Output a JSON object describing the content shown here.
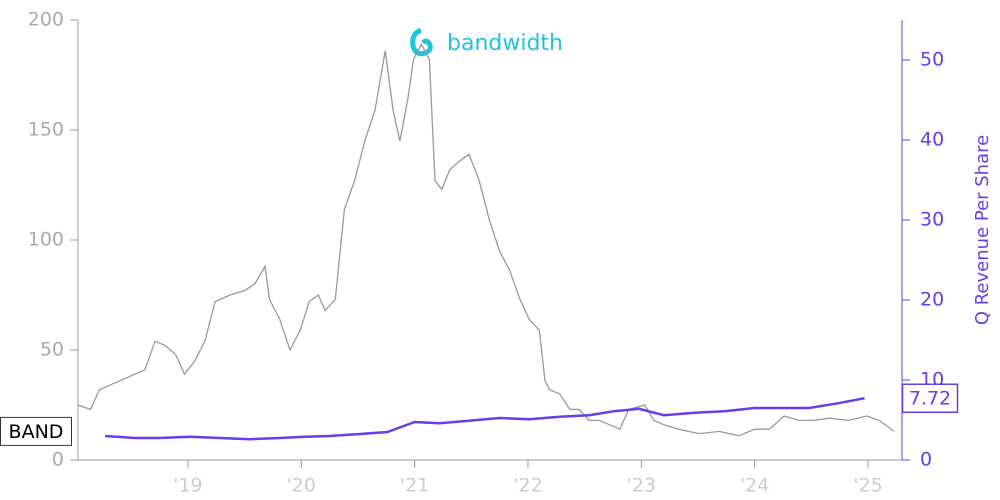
{
  "chart_data": {
    "type": "line",
    "logo_text": "bandwidth",
    "xlim": [
      2018.03,
      2025.3
    ],
    "xticks": [
      {
        "value": 2019,
        "label": "'19"
      },
      {
        "value": 2020,
        "label": "'20"
      },
      {
        "value": 2021,
        "label": "'21"
      },
      {
        "value": 2022,
        "label": "'22"
      },
      {
        "value": 2023,
        "label": "'23"
      },
      {
        "value": 2024,
        "label": "'24"
      },
      {
        "value": 2025,
        "label": "'25"
      }
    ],
    "ylim": [
      0,
      200
    ],
    "yticks": [
      0,
      50,
      100,
      150,
      200
    ],
    "y2lim": [
      0,
      55
    ],
    "y2ticks": [
      0,
      10,
      20,
      30,
      40,
      50
    ],
    "series": [
      {
        "name": "BAND",
        "color": "#999999",
        "axis": "y",
        "x": [
          2018.03,
          2018.14,
          2018.22,
          2018.4,
          2018.53,
          2018.62,
          2018.71,
          2018.8,
          2018.89,
          2018.97,
          2019.06,
          2019.15,
          2019.24,
          2019.37,
          2019.5,
          2019.59,
          2019.68,
          2019.72,
          2019.81,
          2019.9,
          2019.99,
          2020.07,
          2020.15,
          2020.21,
          2020.3,
          2020.38,
          2020.47,
          2020.56,
          2020.65,
          2020.74,
          2020.81,
          2020.87,
          2020.94,
          2020.99,
          2021.06,
          2021.13,
          2021.18,
          2021.24,
          2021.31,
          2021.4,
          2021.48,
          2021.57,
          2021.66,
          2021.75,
          2021.84,
          2021.93,
          2022.01,
          2022.1,
          2022.15,
          2022.19,
          2022.28,
          2022.37,
          2022.45,
          2022.54,
          2022.63,
          2022.72,
          2022.81,
          2022.89,
          2023.03,
          2023.11,
          2023.2,
          2023.33,
          2023.51,
          2023.69,
          2023.86,
          2024.0,
          2024.13,
          2024.26,
          2024.39,
          2024.52,
          2024.66,
          2024.83,
          2024.99,
          2025.1,
          2025.23
        ],
        "values": [
          25,
          23,
          32,
          36,
          39,
          41,
          54,
          52,
          48,
          39,
          45,
          54,
          72,
          75,
          77,
          80,
          88,
          73,
          64,
          50,
          59,
          72,
          75,
          68,
          73,
          114,
          127,
          145,
          159,
          186,
          159,
          145,
          164,
          182,
          189,
          182,
          127,
          123,
          132,
          136,
          139,
          127,
          109,
          95,
          86,
          73,
          64,
          59,
          36,
          32,
          30,
          23,
          23,
          18,
          18,
          16,
          14,
          23,
          25,
          18,
          16,
          14,
          12,
          13,
          11,
          14,
          14,
          20,
          18,
          18,
          19,
          18,
          20,
          18,
          13
        ]
      },
      {
        "name": "Q Revenue Per Share",
        "color": "#6a3de8",
        "axis": "y2",
        "x": [
          2018.27,
          2018.53,
          2018.75,
          2019.02,
          2019.28,
          2019.55,
          2019.81,
          2020.03,
          2020.25,
          2020.52,
          2020.76,
          2021.0,
          2021.22,
          2021.48,
          2021.75,
          2022.01,
          2022.28,
          2022.54,
          2022.76,
          2022.98,
          2023.2,
          2023.47,
          2023.73,
          2024.0,
          2024.26,
          2024.48,
          2024.74,
          2024.97
        ],
        "values": [
          3.0,
          2.75,
          2.75,
          2.9,
          2.75,
          2.6,
          2.75,
          2.9,
          3.0,
          3.25,
          3.5,
          4.75,
          4.6,
          4.9,
          5.25,
          5.1,
          5.4,
          5.6,
          6.1,
          6.4,
          5.6,
          5.9,
          6.1,
          6.5,
          6.5,
          6.5,
          7.1,
          7.72
        ]
      }
    ]
  }
}
